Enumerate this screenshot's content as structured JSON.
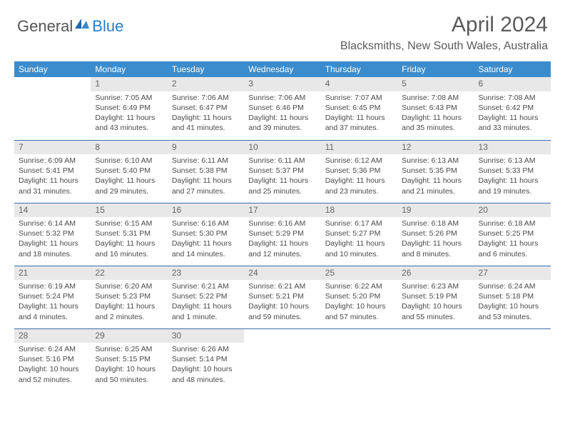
{
  "brand": {
    "part1": "General",
    "part2": "Blue"
  },
  "title": "April 2024",
  "location": "Blacksmiths, New South Wales, Australia",
  "header_bg": "#3b8ccc",
  "day_headers": [
    "Sunday",
    "Monday",
    "Tuesday",
    "Wednesday",
    "Thursday",
    "Friday",
    "Saturday"
  ],
  "weeks": [
    [
      {
        "n": "",
        "sunrise": "",
        "sunset": "",
        "daylight": ""
      },
      {
        "n": "1",
        "sunrise": "Sunrise: 7:05 AM",
        "sunset": "Sunset: 6:49 PM",
        "daylight": "Daylight: 11 hours and 43 minutes."
      },
      {
        "n": "2",
        "sunrise": "Sunrise: 7:06 AM",
        "sunset": "Sunset: 6:47 PM",
        "daylight": "Daylight: 11 hours and 41 minutes."
      },
      {
        "n": "3",
        "sunrise": "Sunrise: 7:06 AM",
        "sunset": "Sunset: 6:46 PM",
        "daylight": "Daylight: 11 hours and 39 minutes."
      },
      {
        "n": "4",
        "sunrise": "Sunrise: 7:07 AM",
        "sunset": "Sunset: 6:45 PM",
        "daylight": "Daylight: 11 hours and 37 minutes."
      },
      {
        "n": "5",
        "sunrise": "Sunrise: 7:08 AM",
        "sunset": "Sunset: 6:43 PM",
        "daylight": "Daylight: 11 hours and 35 minutes."
      },
      {
        "n": "6",
        "sunrise": "Sunrise: 7:08 AM",
        "sunset": "Sunset: 6:42 PM",
        "daylight": "Daylight: 11 hours and 33 minutes."
      }
    ],
    [
      {
        "n": "7",
        "sunrise": "Sunrise: 6:09 AM",
        "sunset": "Sunset: 5:41 PM",
        "daylight": "Daylight: 11 hours and 31 minutes."
      },
      {
        "n": "8",
        "sunrise": "Sunrise: 6:10 AM",
        "sunset": "Sunset: 5:40 PM",
        "daylight": "Daylight: 11 hours and 29 minutes."
      },
      {
        "n": "9",
        "sunrise": "Sunrise: 6:11 AM",
        "sunset": "Sunset: 5:38 PM",
        "daylight": "Daylight: 11 hours and 27 minutes."
      },
      {
        "n": "10",
        "sunrise": "Sunrise: 6:11 AM",
        "sunset": "Sunset: 5:37 PM",
        "daylight": "Daylight: 11 hours and 25 minutes."
      },
      {
        "n": "11",
        "sunrise": "Sunrise: 6:12 AM",
        "sunset": "Sunset: 5:36 PM",
        "daylight": "Daylight: 11 hours and 23 minutes."
      },
      {
        "n": "12",
        "sunrise": "Sunrise: 6:13 AM",
        "sunset": "Sunset: 5:35 PM",
        "daylight": "Daylight: 11 hours and 21 minutes."
      },
      {
        "n": "13",
        "sunrise": "Sunrise: 6:13 AM",
        "sunset": "Sunset: 5:33 PM",
        "daylight": "Daylight: 11 hours and 19 minutes."
      }
    ],
    [
      {
        "n": "14",
        "sunrise": "Sunrise: 6:14 AM",
        "sunset": "Sunset: 5:32 PM",
        "daylight": "Daylight: 11 hours and 18 minutes."
      },
      {
        "n": "15",
        "sunrise": "Sunrise: 6:15 AM",
        "sunset": "Sunset: 5:31 PM",
        "daylight": "Daylight: 11 hours and 16 minutes."
      },
      {
        "n": "16",
        "sunrise": "Sunrise: 6:16 AM",
        "sunset": "Sunset: 5:30 PM",
        "daylight": "Daylight: 11 hours and 14 minutes."
      },
      {
        "n": "17",
        "sunrise": "Sunrise: 6:16 AM",
        "sunset": "Sunset: 5:29 PM",
        "daylight": "Daylight: 11 hours and 12 minutes."
      },
      {
        "n": "18",
        "sunrise": "Sunrise: 6:17 AM",
        "sunset": "Sunset: 5:27 PM",
        "daylight": "Daylight: 11 hours and 10 minutes."
      },
      {
        "n": "19",
        "sunrise": "Sunrise: 6:18 AM",
        "sunset": "Sunset: 5:26 PM",
        "daylight": "Daylight: 11 hours and 8 minutes."
      },
      {
        "n": "20",
        "sunrise": "Sunrise: 6:18 AM",
        "sunset": "Sunset: 5:25 PM",
        "daylight": "Daylight: 11 hours and 6 minutes."
      }
    ],
    [
      {
        "n": "21",
        "sunrise": "Sunrise: 6:19 AM",
        "sunset": "Sunset: 5:24 PM",
        "daylight": "Daylight: 11 hours and 4 minutes."
      },
      {
        "n": "22",
        "sunrise": "Sunrise: 6:20 AM",
        "sunset": "Sunset: 5:23 PM",
        "daylight": "Daylight: 11 hours and 2 minutes."
      },
      {
        "n": "23",
        "sunrise": "Sunrise: 6:21 AM",
        "sunset": "Sunset: 5:22 PM",
        "daylight": "Daylight: 11 hours and 1 minute."
      },
      {
        "n": "24",
        "sunrise": "Sunrise: 6:21 AM",
        "sunset": "Sunset: 5:21 PM",
        "daylight": "Daylight: 10 hours and 59 minutes."
      },
      {
        "n": "25",
        "sunrise": "Sunrise: 6:22 AM",
        "sunset": "Sunset: 5:20 PM",
        "daylight": "Daylight: 10 hours and 57 minutes."
      },
      {
        "n": "26",
        "sunrise": "Sunrise: 6:23 AM",
        "sunset": "Sunset: 5:19 PM",
        "daylight": "Daylight: 10 hours and 55 minutes."
      },
      {
        "n": "27",
        "sunrise": "Sunrise: 6:24 AM",
        "sunset": "Sunset: 5:18 PM",
        "daylight": "Daylight: 10 hours and 53 minutes."
      }
    ],
    [
      {
        "n": "28",
        "sunrise": "Sunrise: 6:24 AM",
        "sunset": "Sunset: 5:16 PM",
        "daylight": "Daylight: 10 hours and 52 minutes."
      },
      {
        "n": "29",
        "sunrise": "Sunrise: 6:25 AM",
        "sunset": "Sunset: 5:15 PM",
        "daylight": "Daylight: 10 hours and 50 minutes."
      },
      {
        "n": "30",
        "sunrise": "Sunrise: 6:26 AM",
        "sunset": "Sunset: 5:14 PM",
        "daylight": "Daylight: 10 hours and 48 minutes."
      },
      {
        "n": "",
        "sunrise": "",
        "sunset": "",
        "daylight": ""
      },
      {
        "n": "",
        "sunrise": "",
        "sunset": "",
        "daylight": ""
      },
      {
        "n": "",
        "sunrise": "",
        "sunset": "",
        "daylight": ""
      },
      {
        "n": "",
        "sunrise": "",
        "sunset": "",
        "daylight": ""
      }
    ]
  ]
}
